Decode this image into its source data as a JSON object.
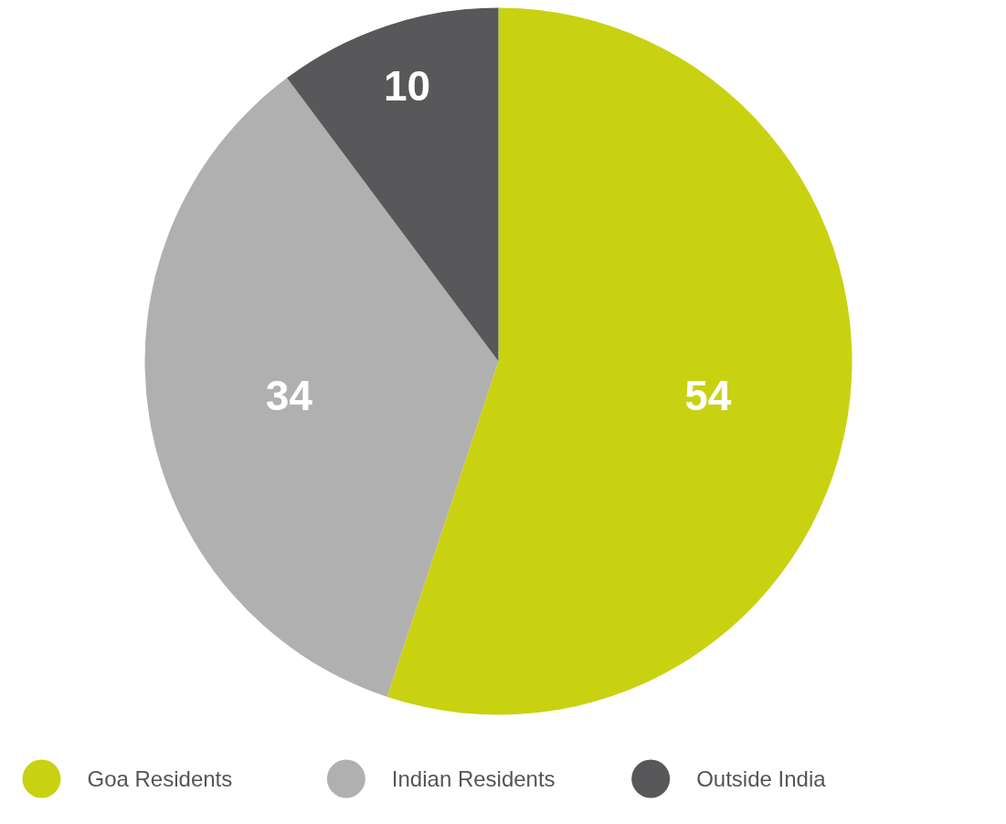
{
  "chart_data": {
    "type": "pie",
    "categories": [
      "Goa Residents",
      "Indian Residents",
      "Outside India"
    ],
    "values": [
      54,
      34,
      10
    ],
    "colors": [
      "#c8d211",
      "#b0b0b0",
      "#58585a"
    ],
    "data_labels": true,
    "legend": "bottom"
  }
}
